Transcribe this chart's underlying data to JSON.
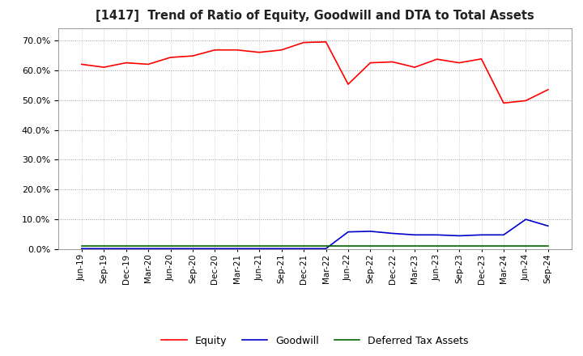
{
  "title": "[1417]  Trend of Ratio of Equity, Goodwill and DTA to Total Assets",
  "x_labels": [
    "Jun-19",
    "Sep-19",
    "Dec-19",
    "Mar-20",
    "Jun-20",
    "Sep-20",
    "Dec-20",
    "Mar-21",
    "Jun-21",
    "Sep-21",
    "Dec-21",
    "Mar-22",
    "Jun-22",
    "Sep-22",
    "Dec-22",
    "Mar-23",
    "Jun-23",
    "Sep-23",
    "Dec-23",
    "Mar-24",
    "Jun-24",
    "Sep-24"
  ],
  "equity": [
    0.62,
    0.61,
    0.625,
    0.62,
    0.643,
    0.648,
    0.668,
    0.668,
    0.66,
    0.668,
    0.693,
    0.695,
    0.553,
    0.625,
    0.628,
    0.61,
    0.637,
    0.625,
    0.638,
    0.49,
    0.498,
    0.535
  ],
  "goodwill": [
    0.002,
    0.002,
    0.002,
    0.002,
    0.002,
    0.002,
    0.002,
    0.002,
    0.002,
    0.002,
    0.002,
    0.002,
    0.058,
    0.06,
    0.053,
    0.048,
    0.048,
    0.045,
    0.048,
    0.048,
    0.1,
    0.078
  ],
  "dta": [
    0.01,
    0.01,
    0.01,
    0.01,
    0.01,
    0.01,
    0.01,
    0.01,
    0.01,
    0.01,
    0.01,
    0.01,
    0.01,
    0.01,
    0.01,
    0.01,
    0.01,
    0.01,
    0.01,
    0.01,
    0.01,
    0.01
  ],
  "equity_color": "#ff0000",
  "goodwill_color": "#0000cc",
  "dta_color": "#006600",
  "background_color": "#ffffff",
  "grid_color": "#999999",
  "ylim": [
    0.0,
    0.74
  ],
  "yticks": [
    0.0,
    0.1,
    0.2,
    0.3,
    0.4,
    0.5,
    0.6,
    0.7
  ]
}
